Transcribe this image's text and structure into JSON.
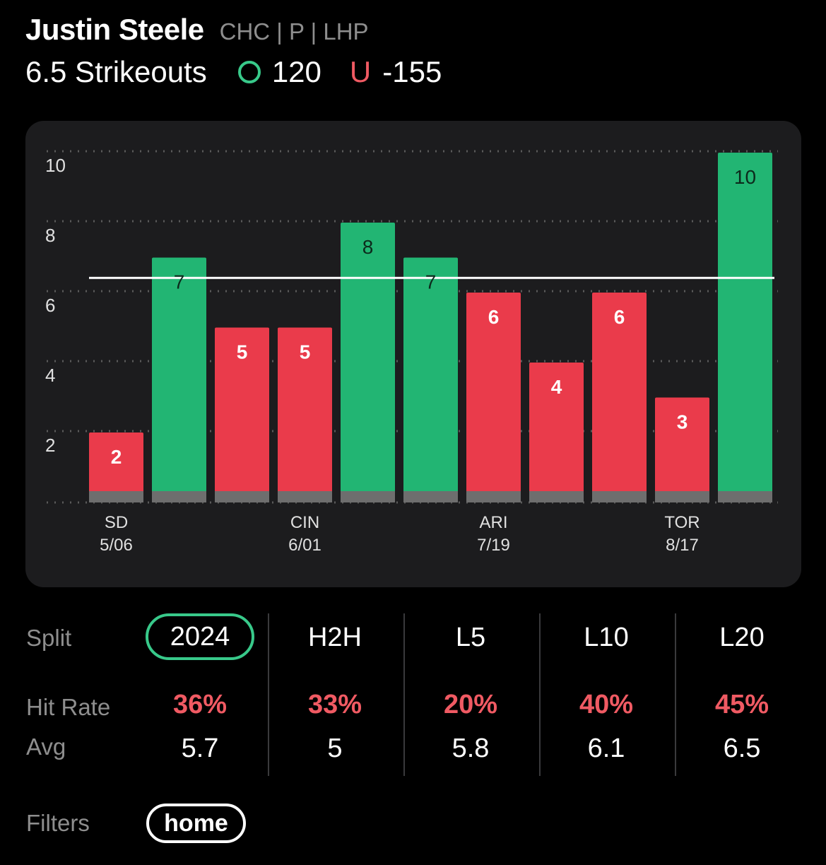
{
  "player": {
    "name": "Justin Steele",
    "meta": "CHC | P | LHP"
  },
  "prop": {
    "label": "6.5 Strikeouts",
    "over_odds": "120",
    "under_symbol": "U",
    "under_odds": "-155"
  },
  "colors": {
    "over": "#22b573",
    "under": "#ea3b4b",
    "accent": "#38c98a",
    "card": "#1c1c1e"
  },
  "chart_data": {
    "type": "bar",
    "line": 6.5,
    "ylim": [
      0,
      10
    ],
    "yticks": [
      2,
      4,
      6,
      8,
      10
    ],
    "grid": true,
    "values": [
      2,
      7,
      5,
      5,
      8,
      7,
      6,
      4,
      6,
      3,
      10
    ],
    "x_labels": [
      {
        "index": 0,
        "team": "SD",
        "date": "5/06"
      },
      {
        "index": 3,
        "team": "CIN",
        "date": "6/01"
      },
      {
        "index": 6,
        "team": "ARI",
        "date": "7/19"
      },
      {
        "index": 9,
        "team": "TOR",
        "date": "8/17"
      }
    ]
  },
  "stats": {
    "split_label": "Split",
    "hit_rate_label": "Hit Rate",
    "avg_label": "Avg",
    "columns": [
      {
        "label": "2024",
        "hit_rate": "36%",
        "avg": "5.7",
        "selected": true
      },
      {
        "label": "H2H",
        "hit_rate": "33%",
        "avg": "5"
      },
      {
        "label": "L5",
        "hit_rate": "20%",
        "avg": "5.8"
      },
      {
        "label": "L10",
        "hit_rate": "40%",
        "avg": "6.1"
      },
      {
        "label": "L20",
        "hit_rate": "45%",
        "avg": "6.5"
      }
    ]
  },
  "filters": {
    "label": "Filters",
    "chips": [
      "home"
    ]
  }
}
